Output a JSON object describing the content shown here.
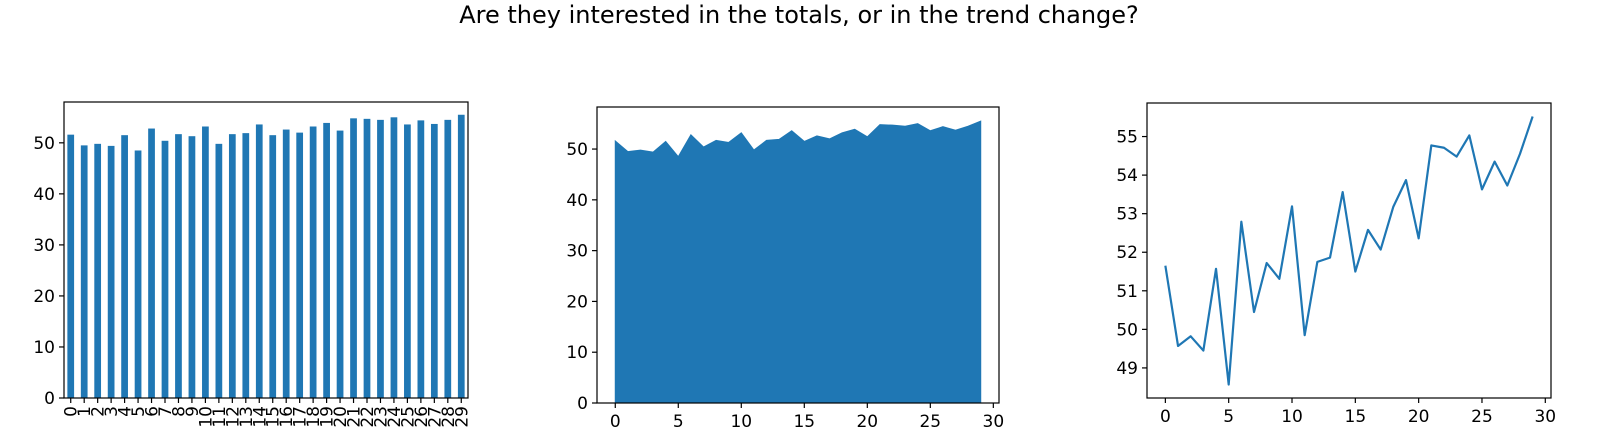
{
  "suptitle": "Are they interested in the totals, or in the trend change?",
  "colors": {
    "series": "#1f77b4",
    "axes": "#000000",
    "background": "#ffffff"
  },
  "chart_data": [
    {
      "type": "bar",
      "categories": [
        "0",
        "1",
        "2",
        "3",
        "4",
        "5",
        "6",
        "7",
        "8",
        "9",
        "10",
        "11",
        "12",
        "13",
        "14",
        "15",
        "16",
        "17",
        "18",
        "19",
        "20",
        "21",
        "22",
        "23",
        "24",
        "25",
        "26",
        "27",
        "28",
        "29"
      ],
      "values": [
        51.6,
        49.5,
        49.8,
        49.4,
        51.5,
        48.5,
        52.8,
        50.4,
        51.7,
        51.3,
        53.2,
        49.8,
        51.7,
        51.9,
        53.6,
        51.5,
        52.6,
        52.0,
        53.2,
        53.9,
        52.4,
        54.8,
        54.7,
        54.5,
        55.0,
        53.6,
        54.4,
        53.7,
        54.5,
        55.5
      ],
      "ylim": [
        0,
        58
      ],
      "yticks": [
        0,
        10,
        20,
        30,
        40,
        50
      ],
      "tick_rotation": "vertical",
      "grid": false
    },
    {
      "type": "area",
      "x": [
        0,
        1,
        2,
        3,
        4,
        5,
        6,
        7,
        8,
        9,
        10,
        11,
        12,
        13,
        14,
        15,
        16,
        17,
        18,
        19,
        20,
        21,
        22,
        23,
        24,
        25,
        26,
        27,
        28,
        29
      ],
      "values": [
        51.6,
        49.5,
        49.8,
        49.4,
        51.5,
        48.5,
        52.8,
        50.4,
        51.7,
        51.3,
        53.2,
        49.8,
        51.7,
        51.9,
        53.6,
        51.5,
        52.6,
        52.0,
        53.2,
        53.9,
        52.4,
        54.8,
        54.7,
        54.5,
        55.0,
        53.6,
        54.4,
        53.7,
        54.5,
        55.5
      ],
      "xlim": [
        -1.45,
        30.45
      ],
      "ylim": [
        0,
        58.28
      ],
      "xticks": [
        0,
        5,
        10,
        15,
        20,
        25,
        30
      ],
      "yticks": [
        0,
        10,
        20,
        30,
        40,
        50
      ],
      "grid": false
    },
    {
      "type": "line",
      "x": [
        0,
        1,
        2,
        3,
        4,
        5,
        6,
        7,
        8,
        9,
        10,
        11,
        12,
        13,
        14,
        15,
        16,
        17,
        18,
        19,
        20,
        21,
        22,
        23,
        24,
        25,
        26,
        27,
        28,
        29
      ],
      "values": [
        51.65,
        49.57,
        49.82,
        49.45,
        51.57,
        48.57,
        52.79,
        50.45,
        51.72,
        51.31,
        53.19,
        49.85,
        51.75,
        51.86,
        53.56,
        51.5,
        52.58,
        52.07,
        53.18,
        53.87,
        52.36,
        54.77,
        54.71,
        54.48,
        55.03,
        53.63,
        54.35,
        53.73,
        54.55,
        55.52
      ],
      "xlim": [
        -1.45,
        30.45
      ],
      "ylim": [
        48.22,
        55.87
      ],
      "xticks": [
        0,
        5,
        10,
        15,
        20,
        25,
        30
      ],
      "yticks": [
        49,
        50,
        51,
        52,
        53,
        54,
        55
      ],
      "grid": false
    }
  ]
}
